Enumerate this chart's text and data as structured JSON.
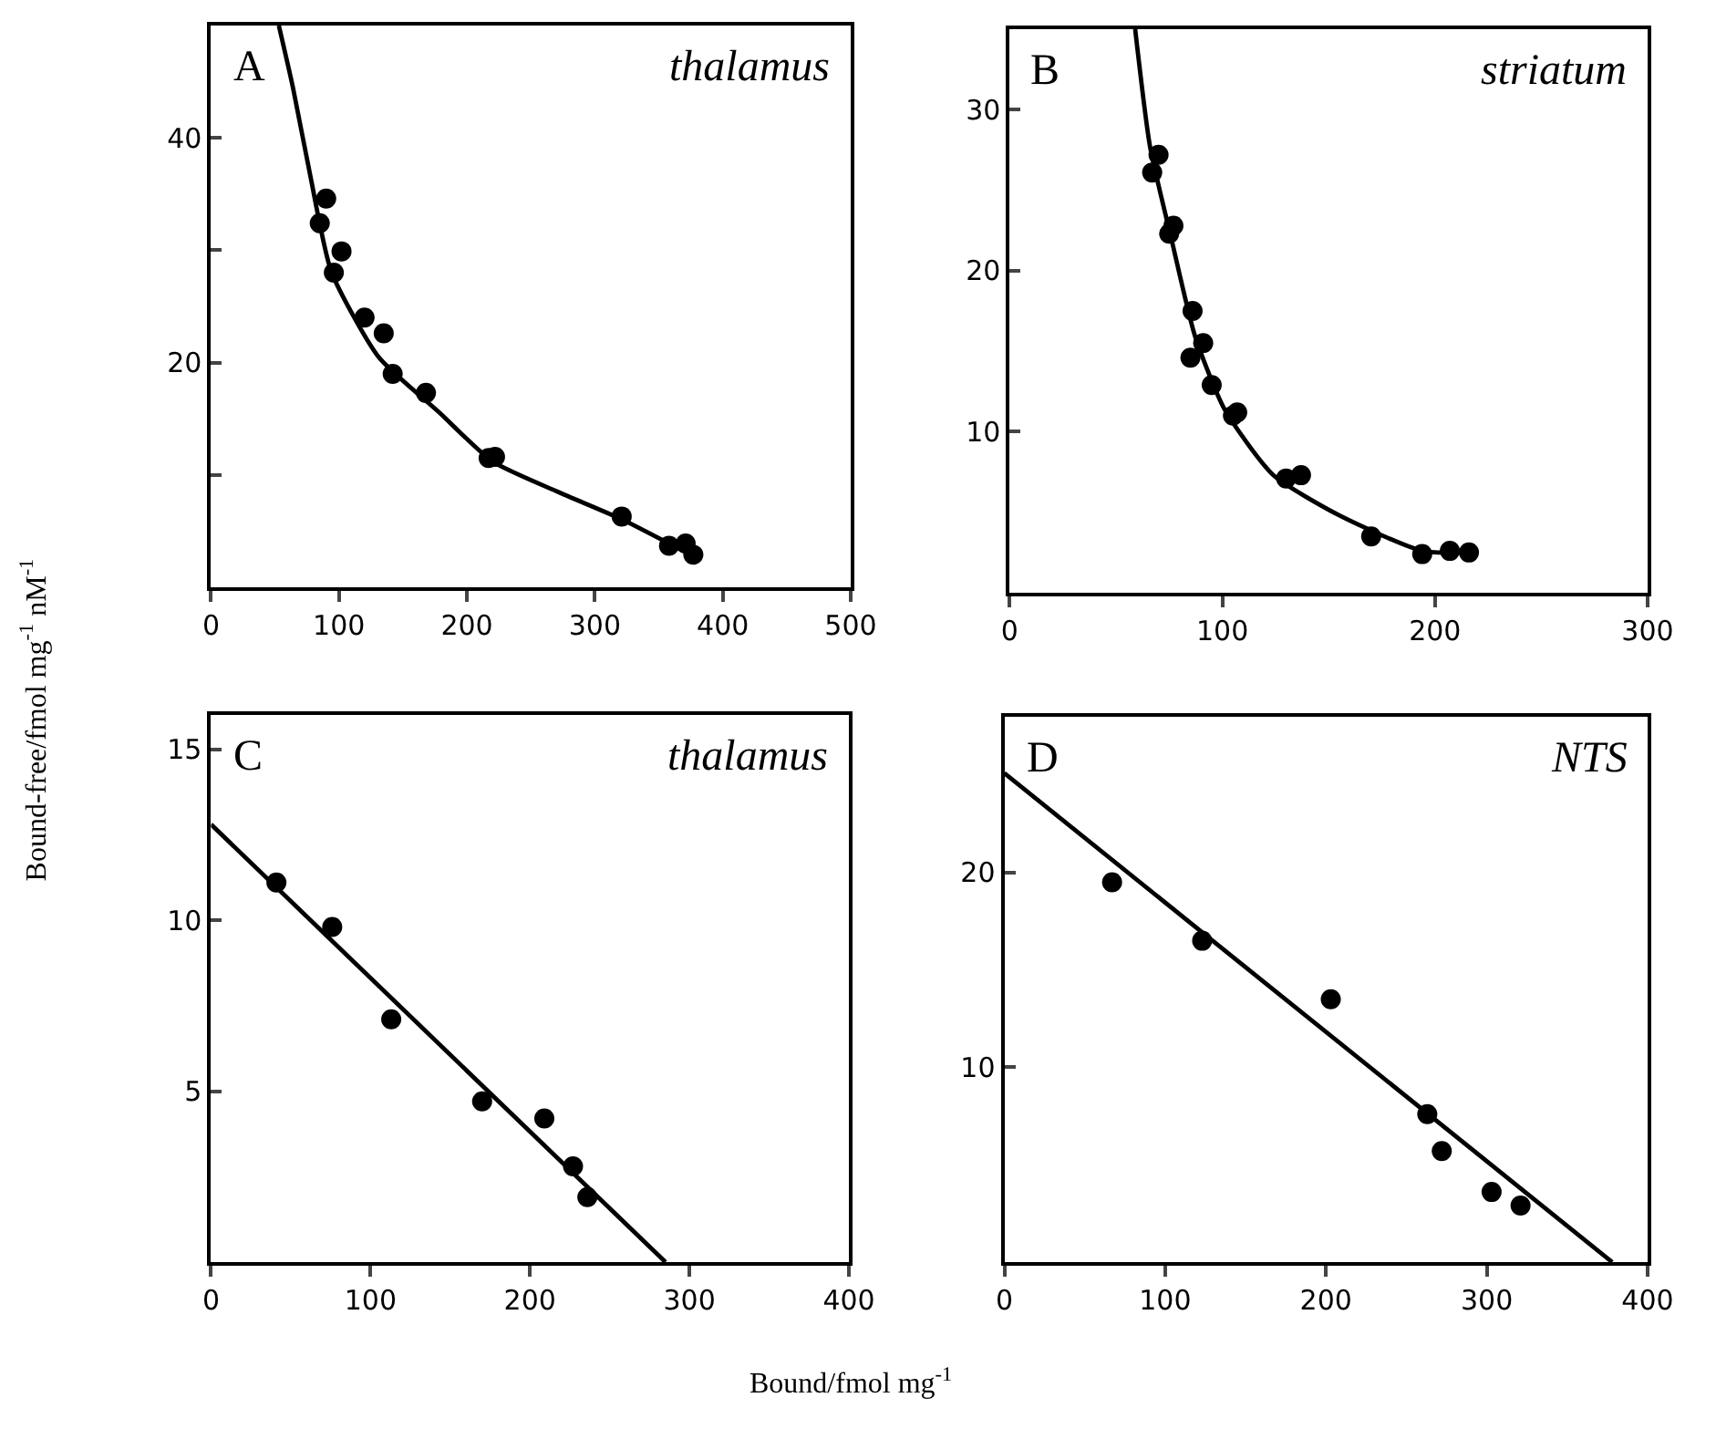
{
  "chart_data": [
    {
      "type": "scatter",
      "title": "thalamus",
      "annotations": [
        "A"
      ],
      "ylabel": "Bound-free/fmol mg$^{-1}$ nM$^{-1}$",
      "xlim": [
        0,
        500
      ],
      "ylim": [
        0,
        50
      ],
      "xticks": [
        0,
        100,
        200,
        300,
        400,
        500
      ],
      "yticks": [
        {
          "value": 10,
          "label": null
        },
        20,
        {
          "value": 30,
          "label": null
        },
        40
      ],
      "marker": "circle",
      "series": [
        {
          "color": "#000000",
          "x": [
            90,
            85,
            102,
            96,
            120,
            135,
            142,
            168,
            217,
            222,
            321,
            358,
            371,
            377
          ],
          "values": [
            34.6,
            32.4,
            29.9,
            28.0,
            24.0,
            22.6,
            19.0,
            17.3,
            11.5,
            11.6,
            6.3,
            3.7,
            3.9,
            2.9
          ]
        },
        {
          "type": "line",
          "marker": "none",
          "line_style": "solid",
          "color": "#000000",
          "x": [
            53,
            64,
            78,
            94,
            131,
            178,
            220,
            271,
            322,
            378
          ],
          "values": [
            50,
            44.5,
            36.4,
            28.1,
            20.5,
            15.6,
            11.2,
            8.5,
            6.0,
            2.7
          ]
        }
      ]
    },
    {
      "type": "scatter",
      "title": "striatum",
      "annotations": [
        "B"
      ],
      "xlim": [
        0,
        300
      ],
      "ylim": [
        0,
        35
      ],
      "xticks": [
        0,
        100,
        200,
        300
      ],
      "yticks": [
        10,
        20,
        30
      ],
      "marker": "circle",
      "series": [
        {
          "color": "#000000",
          "x": [
            70,
            67,
            77,
            75,
            86,
            91,
            85,
            95,
            107,
            105,
            130,
            137,
            170,
            194,
            207,
            216
          ],
          "values": [
            27.2,
            26.1,
            22.8,
            22.3,
            17.5,
            15.5,
            14.6,
            12.9,
            11.2,
            11.0,
            7.1,
            7.3,
            3.5,
            2.4,
            2.6,
            2.5
          ]
        },
        {
          "type": "line",
          "marker": "none",
          "line_style": "solid",
          "color": "#000000",
          "x": [
            59,
            66,
            76,
            87,
            101,
            124,
            155,
            194,
            217
          ],
          "values": [
            35,
            27.7,
            22.0,
            16.0,
            11.4,
            7.3,
            4.8,
            2.6,
            2.5
          ]
        }
      ]
    },
    {
      "type": "scatter",
      "title": "thalamus",
      "annotations": [
        "C"
      ],
      "xlabel": "Bound/fmol mg$^{-1}$",
      "xlim": [
        0,
        400
      ],
      "ylim": [
        0,
        16
      ],
      "xticks": [
        0,
        100,
        200,
        300,
        400
      ],
      "yticks": [
        5,
        10,
        15
      ],
      "marker": "circle",
      "series": [
        {
          "color": "#000000",
          "x": [
            41,
            76,
            113,
            170,
            209,
            227,
            236
          ],
          "values": [
            11.1,
            9.8,
            7.1,
            4.7,
            4.2,
            2.8,
            1.9
          ]
        },
        {
          "type": "line",
          "marker": "none",
          "line_style": "solid",
          "color": "#000000",
          "x": [
            0,
            285
          ],
          "values": [
            12.8,
            0
          ]
        }
      ]
    },
    {
      "type": "scatter",
      "title": "NTS",
      "annotations": [
        "D"
      ],
      "xlim": [
        0,
        400
      ],
      "ylim": [
        0,
        28
      ],
      "xticks": [
        0,
        100,
        200,
        300,
        400
      ],
      "yticks": [
        10,
        20
      ],
      "marker": "circle",
      "series": [
        {
          "color": "#000000",
          "x": [
            67,
            123,
            203,
            263,
            272,
            303,
            321
          ],
          "values": [
            19.5,
            16.5,
            13.5,
            7.6,
            5.7,
            3.6,
            2.9
          ]
        },
        {
          "type": "line",
          "marker": "none",
          "line_style": "solid",
          "color": "#000000",
          "x": [
            0,
            378
          ],
          "values": [
            25.1,
            0
          ]
        }
      ]
    }
  ]
}
